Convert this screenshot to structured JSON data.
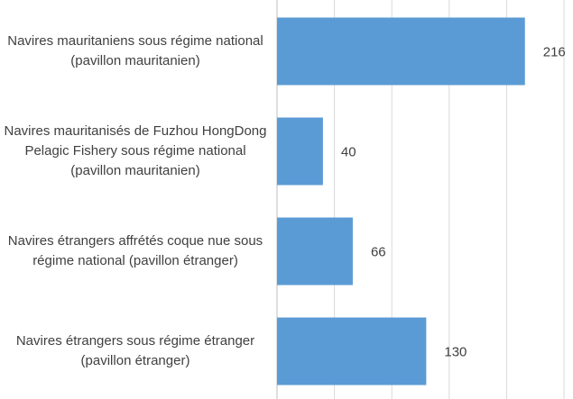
{
  "chart_data": {
    "type": "bar",
    "orientation": "horizontal",
    "categories": [
      "Navires mauritaniens sous régime national (pavillon mauritanien)",
      "Navires mauritanisés de Fuzhou HongDong Pelagic Fishery sous régime national  (pavillon mauritanien)",
      "Navires étrangers affrétés coque nue sous régime national (pavillon étranger)",
      "Navires étrangers sous régime étranger (pavillon étranger)"
    ],
    "values": [
      216,
      40,
      66,
      130
    ],
    "color": "#5b9bd5",
    "xlim": [
      0,
      250
    ],
    "xticks": [
      0,
      50,
      100,
      150,
      200,
      250
    ],
    "grid": true
  }
}
